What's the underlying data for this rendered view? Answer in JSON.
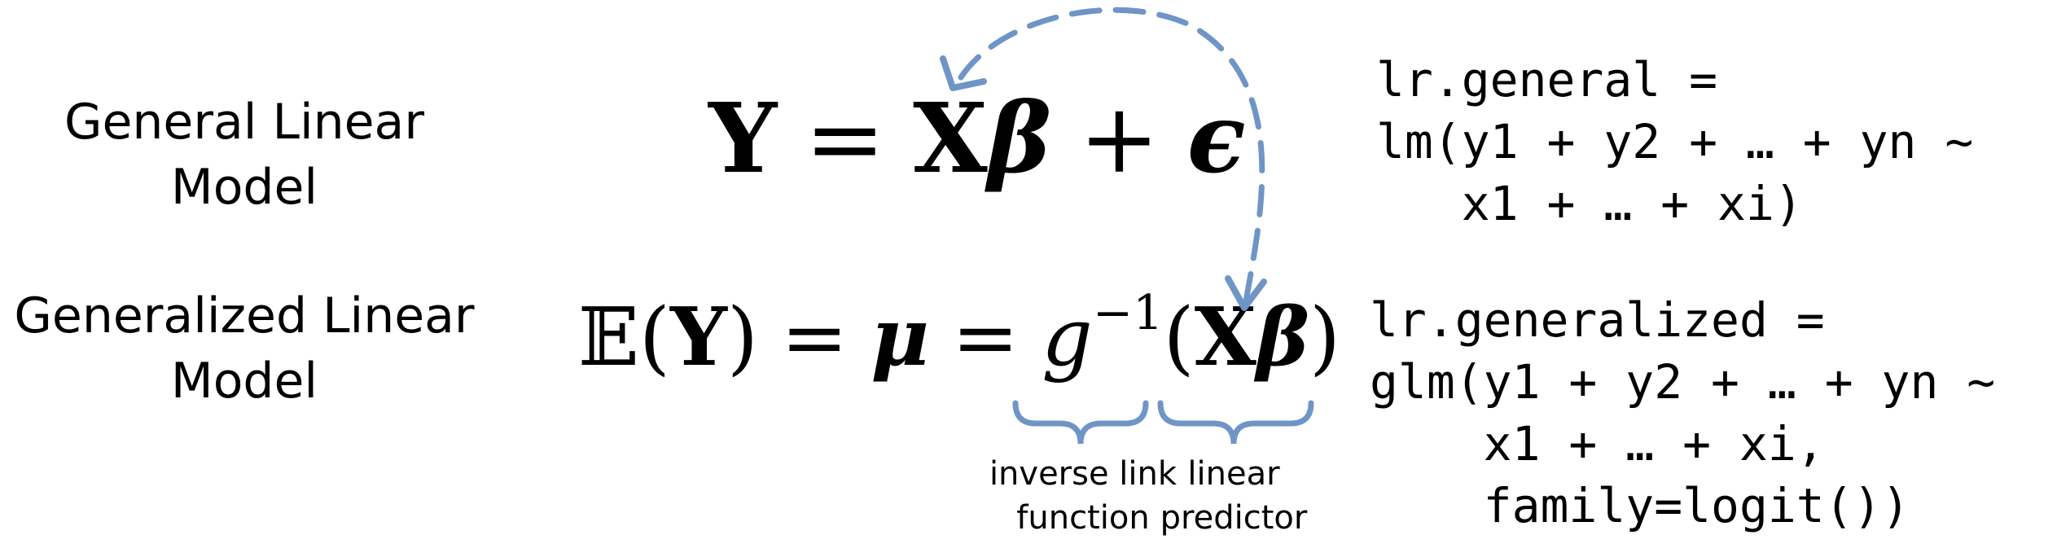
{
  "labels": {
    "general_line1": "General Linear",
    "general_line2": "Model",
    "generalized_line1": "Generalized Linear",
    "generalized_line2": "Model"
  },
  "equation1": {
    "Y": "Y",
    "eq": "=",
    "X": "X",
    "beta": "β",
    "plus": "+",
    "epsilon": "ϵ"
  },
  "equation2": {
    "E": "𝔼",
    "lparen": "(",
    "Y": "Y",
    "rparen": ")",
    "eq1": "=",
    "mu": "μ",
    "eq2": "=",
    "g": "g",
    "inv": "−1",
    "lparen2": "(",
    "X": "X",
    "beta": "β",
    "rparen2": ")"
  },
  "annotations": {
    "inverse_link_line1": "inverse link",
    "inverse_link_line2": "function",
    "linear_predictor_line1": "linear",
    "linear_predictor_line2": "predictor"
  },
  "code": {
    "general": "lr.general =\nlm(y1 + y2 + … + yn ~\n   x1 + … + xi)",
    "generalized": "lr.generalized =\nglm(y1 + y2 + … + yn ~\n    x1 + … + xi,\n    family=logit())"
  },
  "colors": {
    "accent": "#6f95c6"
  }
}
